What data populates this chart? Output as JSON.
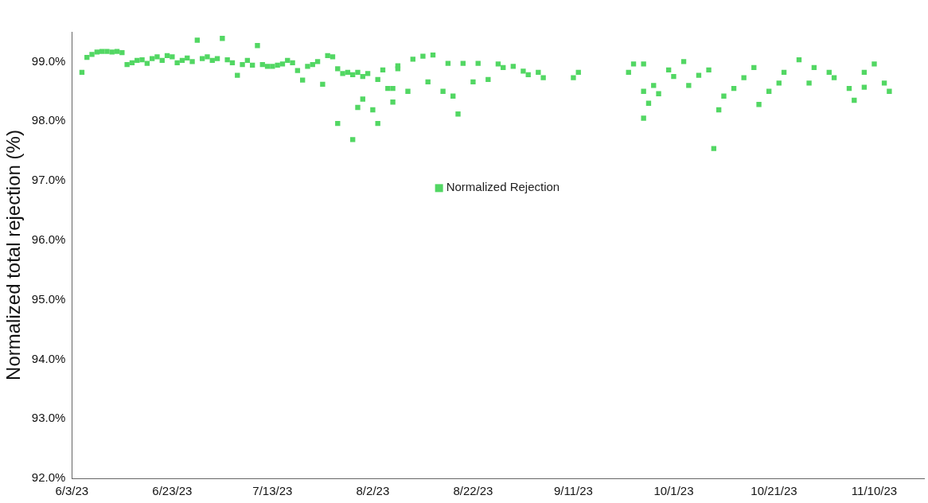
{
  "chart_data": {
    "type": "scatter",
    "ylabel": "Normalized total rejection (%)",
    "xlim": [
      "2023-06-03",
      "2023-11-20"
    ],
    "xticks": [
      {
        "value": "2023-06-03",
        "label": "6/3/23"
      },
      {
        "value": "2023-06-23",
        "label": "6/23/23"
      },
      {
        "value": "2023-07-13",
        "label": "7/13/23"
      },
      {
        "value": "2023-08-02",
        "label": "8/2/23"
      },
      {
        "value": "2023-08-22",
        "label": "8/22/23"
      },
      {
        "value": "2023-09-11",
        "label": "9/11/23"
      },
      {
        "value": "2023-10-01",
        "label": "10/1/23"
      },
      {
        "value": "2023-10-21",
        "label": "10/21/23"
      },
      {
        "value": "2023-11-10",
        "label": "11/10/23"
      }
    ],
    "ylim": [
      92,
      99.5
    ],
    "yticks": [
      {
        "value": 92,
        "label": "92.0%"
      },
      {
        "value": 93,
        "label": "93.0%"
      },
      {
        "value": 94,
        "label": "94.0%"
      },
      {
        "value": 95,
        "label": "95.0%"
      },
      {
        "value": 96,
        "label": "96.0%"
      },
      {
        "value": 97,
        "label": "97.0%"
      },
      {
        "value": 98,
        "label": "98.0%"
      },
      {
        "value": 99,
        "label": "99.0%"
      }
    ],
    "grid": false,
    "legend": "center",
    "marker": "square",
    "series": [
      {
        "name": "Normalized Rejection",
        "color": "#52d763",
        "x": [
          "2023-06-05",
          "2023-06-06",
          "2023-06-07",
          "2023-06-08",
          "2023-06-09",
          "2023-06-10",
          "2023-06-11",
          "2023-06-12",
          "2023-06-13",
          "2023-06-14",
          "2023-06-15",
          "2023-06-16",
          "2023-06-17",
          "2023-06-18",
          "2023-06-19",
          "2023-06-20",
          "2023-06-21",
          "2023-06-22",
          "2023-06-23",
          "2023-06-24",
          "2023-06-25",
          "2023-06-26",
          "2023-06-27",
          "2023-06-28",
          "2023-06-29",
          "2023-06-30",
          "2023-07-01",
          "2023-07-02",
          "2023-07-03",
          "2023-07-04",
          "2023-07-05",
          "2023-07-06",
          "2023-07-07",
          "2023-07-08",
          "2023-07-09",
          "2023-07-10",
          "2023-07-11",
          "2023-07-12",
          "2023-07-13",
          "2023-07-14",
          "2023-07-15",
          "2023-07-16",
          "2023-07-17",
          "2023-07-18",
          "2023-07-19",
          "2023-07-20",
          "2023-07-21",
          "2023-07-22",
          "2023-07-23",
          "2023-07-24",
          "2023-07-25",
          "2023-07-26",
          "2023-07-26",
          "2023-07-27",
          "2023-07-28",
          "2023-07-29",
          "2023-07-29",
          "2023-07-30",
          "2023-07-30",
          "2023-07-31",
          "2023-07-31",
          "2023-08-01",
          "2023-08-02",
          "2023-08-03",
          "2023-08-03",
          "2023-08-04",
          "2023-08-05",
          "2023-08-06",
          "2023-08-06",
          "2023-08-07",
          "2023-08-07",
          "2023-08-09",
          "2023-08-10",
          "2023-08-12",
          "2023-08-13",
          "2023-08-14",
          "2023-08-16",
          "2023-08-17",
          "2023-08-18",
          "2023-08-19",
          "2023-08-20",
          "2023-08-22",
          "2023-08-23",
          "2023-08-25",
          "2023-08-27",
          "2023-08-28",
          "2023-08-30",
          "2023-09-01",
          "2023-09-02",
          "2023-09-04",
          "2023-09-05",
          "2023-09-11",
          "2023-09-12",
          "2023-09-22",
          "2023-09-23",
          "2023-09-25",
          "2023-09-25",
          "2023-09-25",
          "2023-09-26",
          "2023-09-27",
          "2023-09-28",
          "2023-09-30",
          "2023-10-01",
          "2023-10-03",
          "2023-10-04",
          "2023-10-06",
          "2023-10-08",
          "2023-10-09",
          "2023-10-10",
          "2023-10-11",
          "2023-10-13",
          "2023-10-15",
          "2023-10-17",
          "2023-10-18",
          "2023-10-20",
          "2023-10-22",
          "2023-10-23",
          "2023-10-26",
          "2023-10-28",
          "2023-10-29",
          "2023-11-01",
          "2023-11-02",
          "2023-11-05",
          "2023-11-06",
          "2023-11-08",
          "2023-11-08",
          "2023-11-10",
          "2023-11-12",
          "2023-11-13"
        ],
        "values": [
          98.82,
          99.07,
          99.12,
          99.16,
          99.17,
          99.17,
          99.16,
          99.17,
          99.15,
          98.95,
          98.98,
          99.02,
          99.03,
          98.97,
          99.05,
          99.08,
          99.02,
          99.1,
          99.08,
          98.98,
          99.02,
          99.06,
          99.0,
          99.36,
          99.05,
          99.08,
          99.02,
          99.05,
          99.39,
          99.03,
          98.98,
          98.77,
          98.95,
          99.02,
          98.94,
          99.27,
          98.95,
          98.92,
          98.92,
          98.94,
          98.96,
          99.02,
          98.98,
          98.85,
          98.69,
          98.92,
          98.95,
          99.0,
          98.62,
          99.1,
          99.08,
          97.96,
          98.88,
          98.8,
          98.82,
          98.78,
          97.69,
          98.23,
          98.82,
          98.37,
          98.75,
          98.8,
          98.19,
          97.96,
          98.7,
          98.86,
          98.55,
          98.32,
          98.55,
          98.93,
          98.88,
          98.5,
          99.04,
          99.09,
          98.66,
          99.11,
          98.5,
          98.97,
          98.42,
          98.12,
          98.97,
          98.66,
          98.97,
          98.7,
          98.96,
          98.9,
          98.92,
          98.84,
          98.78,
          98.82,
          98.73,
          98.73,
          98.82,
          98.82,
          98.96,
          98.96,
          98.5,
          98.05,
          98.3,
          98.6,
          98.46,
          98.86,
          98.75,
          99.0,
          98.6,
          98.77,
          98.86,
          97.54,
          98.19,
          98.42,
          98.55,
          98.73,
          98.9,
          98.28,
          98.5,
          98.64,
          98.82,
          99.03,
          98.64,
          98.9,
          98.82,
          98.73,
          98.55,
          98.35,
          98.57,
          98.82,
          98.96,
          98.64,
          98.5
        ]
      }
    ]
  }
}
